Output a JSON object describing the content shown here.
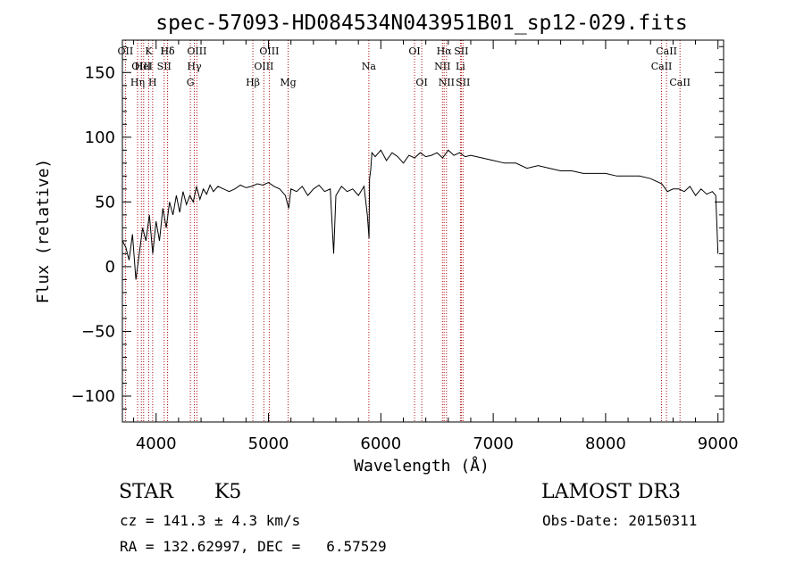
{
  "chart_data": {
    "type": "line",
    "title": "spec-57093-HD084534N043951B01_sp12-029.fits",
    "xlabel": "Wavelength (Å)",
    "ylabel": "Flux (relative)",
    "xlim": [
      3700,
      9050
    ],
    "ylim": [
      -120,
      175
    ],
    "xticks": [
      4000,
      5000,
      6000,
      7000,
      8000,
      9000
    ],
    "yticks": [
      -100,
      -50,
      0,
      50,
      100,
      150
    ],
    "xtick_labels": [
      "4000",
      "5000",
      "6000",
      "7000",
      "8000",
      "9000"
    ],
    "ytick_labels": [
      "−100",
      "−50",
      "0",
      "50",
      "100",
      "150"
    ],
    "series": [
      {
        "name": "flux",
        "x": [
          3700,
          3730,
          3760,
          3790,
          3820,
          3850,
          3880,
          3910,
          3940,
          3970,
          4000,
          4030,
          4060,
          4090,
          4120,
          4150,
          4180,
          4210,
          4240,
          4270,
          4300,
          4330,
          4360,
          4390,
          4420,
          4450,
          4480,
          4510,
          4550,
          4600,
          4650,
          4700,
          4750,
          4800,
          4850,
          4900,
          4950,
          5000,
          5050,
          5100,
          5150,
          5180,
          5200,
          5250,
          5300,
          5350,
          5400,
          5450,
          5500,
          5550,
          5580,
          5600,
          5650,
          5700,
          5750,
          5800,
          5850,
          5880,
          5895,
          5900,
          5910,
          5920,
          5950,
          6000,
          6050,
          6100,
          6150,
          6200,
          6250,
          6300,
          6350,
          6400,
          6450,
          6500,
          6550,
          6600,
          6650,
          6700,
          6750,
          6800,
          6900,
          7000,
          7100,
          7200,
          7300,
          7400,
          7500,
          7600,
          7700,
          7800,
          7900,
          8000,
          8100,
          8200,
          8300,
          8400,
          8500,
          8550,
          8600,
          8650,
          8700,
          8750,
          8800,
          8850,
          8900,
          8950,
          8980,
          9000
        ],
        "values": [
          20,
          15,
          5,
          25,
          -10,
          10,
          30,
          20,
          40,
          10,
          35,
          20,
          45,
          30,
          50,
          40,
          55,
          42,
          58,
          48,
          55,
          50,
          62,
          52,
          60,
          56,
          63,
          58,
          62,
          60,
          58,
          60,
          63,
          61,
          62,
          64,
          63,
          65,
          62,
          60,
          55,
          45,
          60,
          58,
          62,
          55,
          60,
          63,
          58,
          60,
          10,
          55,
          62,
          58,
          60,
          55,
          62,
          40,
          22,
          68,
          75,
          88,
          85,
          90,
          82,
          88,
          85,
          80,
          86,
          84,
          88,
          85,
          86,
          88,
          84,
          90,
          86,
          88,
          85,
          86,
          84,
          82,
          80,
          80,
          76,
          78,
          76,
          74,
          74,
          72,
          72,
          72,
          70,
          70,
          70,
          68,
          64,
          58,
          60,
          60,
          58,
          62,
          55,
          60,
          56,
          58,
          55,
          10
        ]
      }
    ],
    "line_markers": [
      {
        "label": "Hδ",
        "x": 4102
      },
      {
        "label": "K",
        "x": 3934
      },
      {
        "label": "Hδ",
        "x": 4102
      },
      {
        "label": "OIII",
        "x": 4363
      },
      {
        "label": "OIII",
        "x": 5007
      },
      {
        "label": "OI",
        "x": 6300
      },
      {
        "label": "Hα",
        "x": 6563
      },
      {
        "label": "SII",
        "x": 6716
      },
      {
        "label": "CaII",
        "x": 8542
      },
      {
        "label": "OII",
        "x": 3727
      },
      {
        "label": "HeI",
        "x": 3889
      },
      {
        "label": "SII",
        "x": 4072
      },
      {
        "label": "Hγ",
        "x": 4340
      },
      {
        "label": "OIII",
        "x": 4959
      },
      {
        "label": "Na",
        "x": 5893
      },
      {
        "label": "NII",
        "x": 6548
      },
      {
        "label": "Li",
        "x": 6708
      },
      {
        "label": "CaII",
        "x": 8498
      },
      {
        "label": "OIII",
        "x": 3869
      },
      {
        "label": "Hη",
        "x": 3835
      },
      {
        "label": "H",
        "x": 3969
      },
      {
        "label": "G",
        "x": 4305
      },
      {
        "label": "Hβ",
        "x": 4861
      },
      {
        "label": "Mg",
        "x": 5175
      },
      {
        "label": "OI",
        "x": 6364
      },
      {
        "label": "NII",
        "x": 6584
      },
      {
        "label": "SII",
        "x": 6731
      },
      {
        "label": "CaII",
        "x": 8662
      }
    ]
  },
  "info": {
    "object_class": "STAR",
    "subclass": "K5",
    "survey": "LAMOST DR3",
    "cz": "cz = 141.3 ± 4.3 km/s",
    "obs_date": "Obs-Date: 20150311",
    "radec": "RA = 132.62997, DEC =   6.57529"
  }
}
